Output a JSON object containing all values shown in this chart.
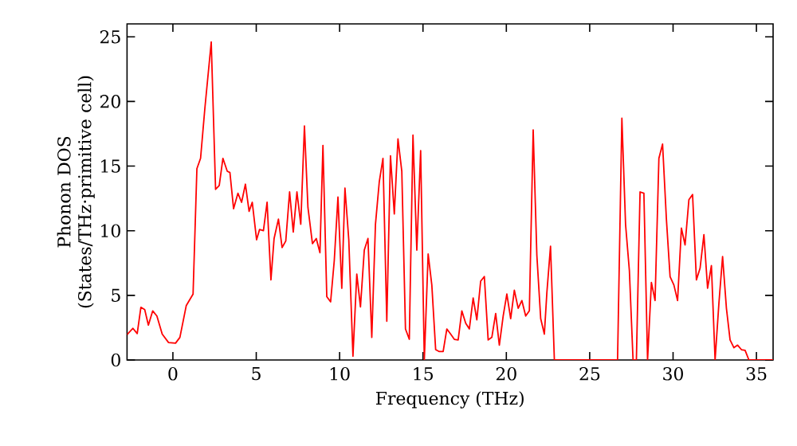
{
  "chart_data": {
    "type": "line",
    "xlabel": "Frequency (THz)",
    "ylabel": "Phonon DOS (States/THz·primitive cell)",
    "xlim": [
      -2.75,
      36
    ],
    "ylim": [
      0,
      26
    ],
    "xticks": [
      0,
      5,
      10,
      15,
      20,
      25,
      30,
      35
    ],
    "yticks": [
      0,
      5,
      10,
      15,
      20,
      25
    ],
    "grid": false,
    "marker": "none",
    "line_style": "solid",
    "series": [
      {
        "color": "#ff0000",
        "x": [
          -2.75,
          -2.4,
          -2.14,
          -1.92,
          -1.69,
          -1.47,
          -1.21,
          -0.96,
          -0.64,
          -0.26,
          0.16,
          0.42,
          0.8,
          1.21,
          1.44,
          1.66,
          1.92,
          2.3,
          2.56,
          2.78,
          3.0,
          3.26,
          3.42,
          3.64,
          3.9,
          4.12,
          4.35,
          4.57,
          4.76,
          5.02,
          5.2,
          5.43,
          5.65,
          5.88,
          6.07,
          6.33,
          6.55,
          6.77,
          7.0,
          7.22,
          7.44,
          7.67,
          7.89,
          8.1,
          8.37,
          8.6,
          8.82,
          9.0,
          9.23,
          9.46,
          9.68,
          9.9,
          10.13,
          10.32,
          10.55,
          10.8,
          11.03,
          11.25,
          11.48,
          11.7,
          11.93,
          12.15,
          12.38,
          12.6,
          12.83,
          13.05,
          13.28,
          13.5,
          13.73,
          13.95,
          14.18,
          14.4,
          14.63,
          14.86,
          15.08,
          15.31,
          15.53,
          15.76,
          15.98,
          16.21,
          16.43,
          16.66,
          16.88,
          17.11,
          17.33,
          17.56,
          17.78,
          18.01,
          18.23,
          18.46,
          18.68,
          18.91,
          19.13,
          19.36,
          19.58,
          19.81,
          20.03,
          20.26,
          20.48,
          20.71,
          20.93,
          21.16,
          21.38,
          21.61,
          21.83,
          22.06,
          22.28,
          22.43,
          22.65,
          22.88,
          26.67,
          26.93,
          27.15,
          27.38,
          27.6,
          27.8,
          28.02,
          28.25,
          28.47,
          28.7,
          28.92,
          29.15,
          29.37,
          29.6,
          29.82,
          30.05,
          30.27,
          30.5,
          30.72,
          30.95,
          31.17,
          31.4,
          31.62,
          31.85,
          32.07,
          32.3,
          32.52,
          32.75,
          32.97,
          33.2,
          33.42,
          33.65,
          33.87,
          34.1,
          34.32,
          34.55,
          36.0
        ],
        "values": [
          1.96,
          2.45,
          2.04,
          4.08,
          3.9,
          2.7,
          3.8,
          3.4,
          2.0,
          1.35,
          1.3,
          1.75,
          4.2,
          5.1,
          14.8,
          15.6,
          19.5,
          24.6,
          13.2,
          13.5,
          15.6,
          14.6,
          14.5,
          11.7,
          12.9,
          12.2,
          13.6,
          11.5,
          12.2,
          9.3,
          10.1,
          10.0,
          12.2,
          6.2,
          9.4,
          10.9,
          8.7,
          9.2,
          13.0,
          9.9,
          13.0,
          10.5,
          18.1,
          11.8,
          9.0,
          9.4,
          8.3,
          16.6,
          4.9,
          4.5,
          7.7,
          12.6,
          5.55,
          13.3,
          9.3,
          0.3,
          6.65,
          4.1,
          8.5,
          9.4,
          1.75,
          10.5,
          13.8,
          15.6,
          3.0,
          15.8,
          11.3,
          17.1,
          14.6,
          2.4,
          1.6,
          17.4,
          8.5,
          16.2,
          0,
          8.2,
          5.8,
          0.8,
          0.65,
          0.65,
          2.4,
          2.0,
          1.6,
          1.55,
          3.8,
          2.85,
          2.4,
          4.8,
          3.1,
          6.1,
          6.45,
          1.55,
          1.75,
          3.6,
          1.15,
          3.4,
          5.1,
          3.2,
          5.4,
          4.0,
          4.6,
          3.4,
          3.8,
          17.8,
          8.1,
          3.2,
          2.0,
          5.2,
          8.8,
          0,
          0,
          18.7,
          10.5,
          6.9,
          0,
          0,
          13.0,
          12.9,
          0,
          6.0,
          4.6,
          15.6,
          16.7,
          10.9,
          6.45,
          5.8,
          4.6,
          10.2,
          8.9,
          12.4,
          12.8,
          6.2,
          7.1,
          9.7,
          5.55,
          7.3,
          0,
          4.4,
          8.0,
          4.0,
          1.55,
          0.95,
          1.15,
          0.8,
          0.75,
          0,
          0
        ]
      }
    ]
  }
}
